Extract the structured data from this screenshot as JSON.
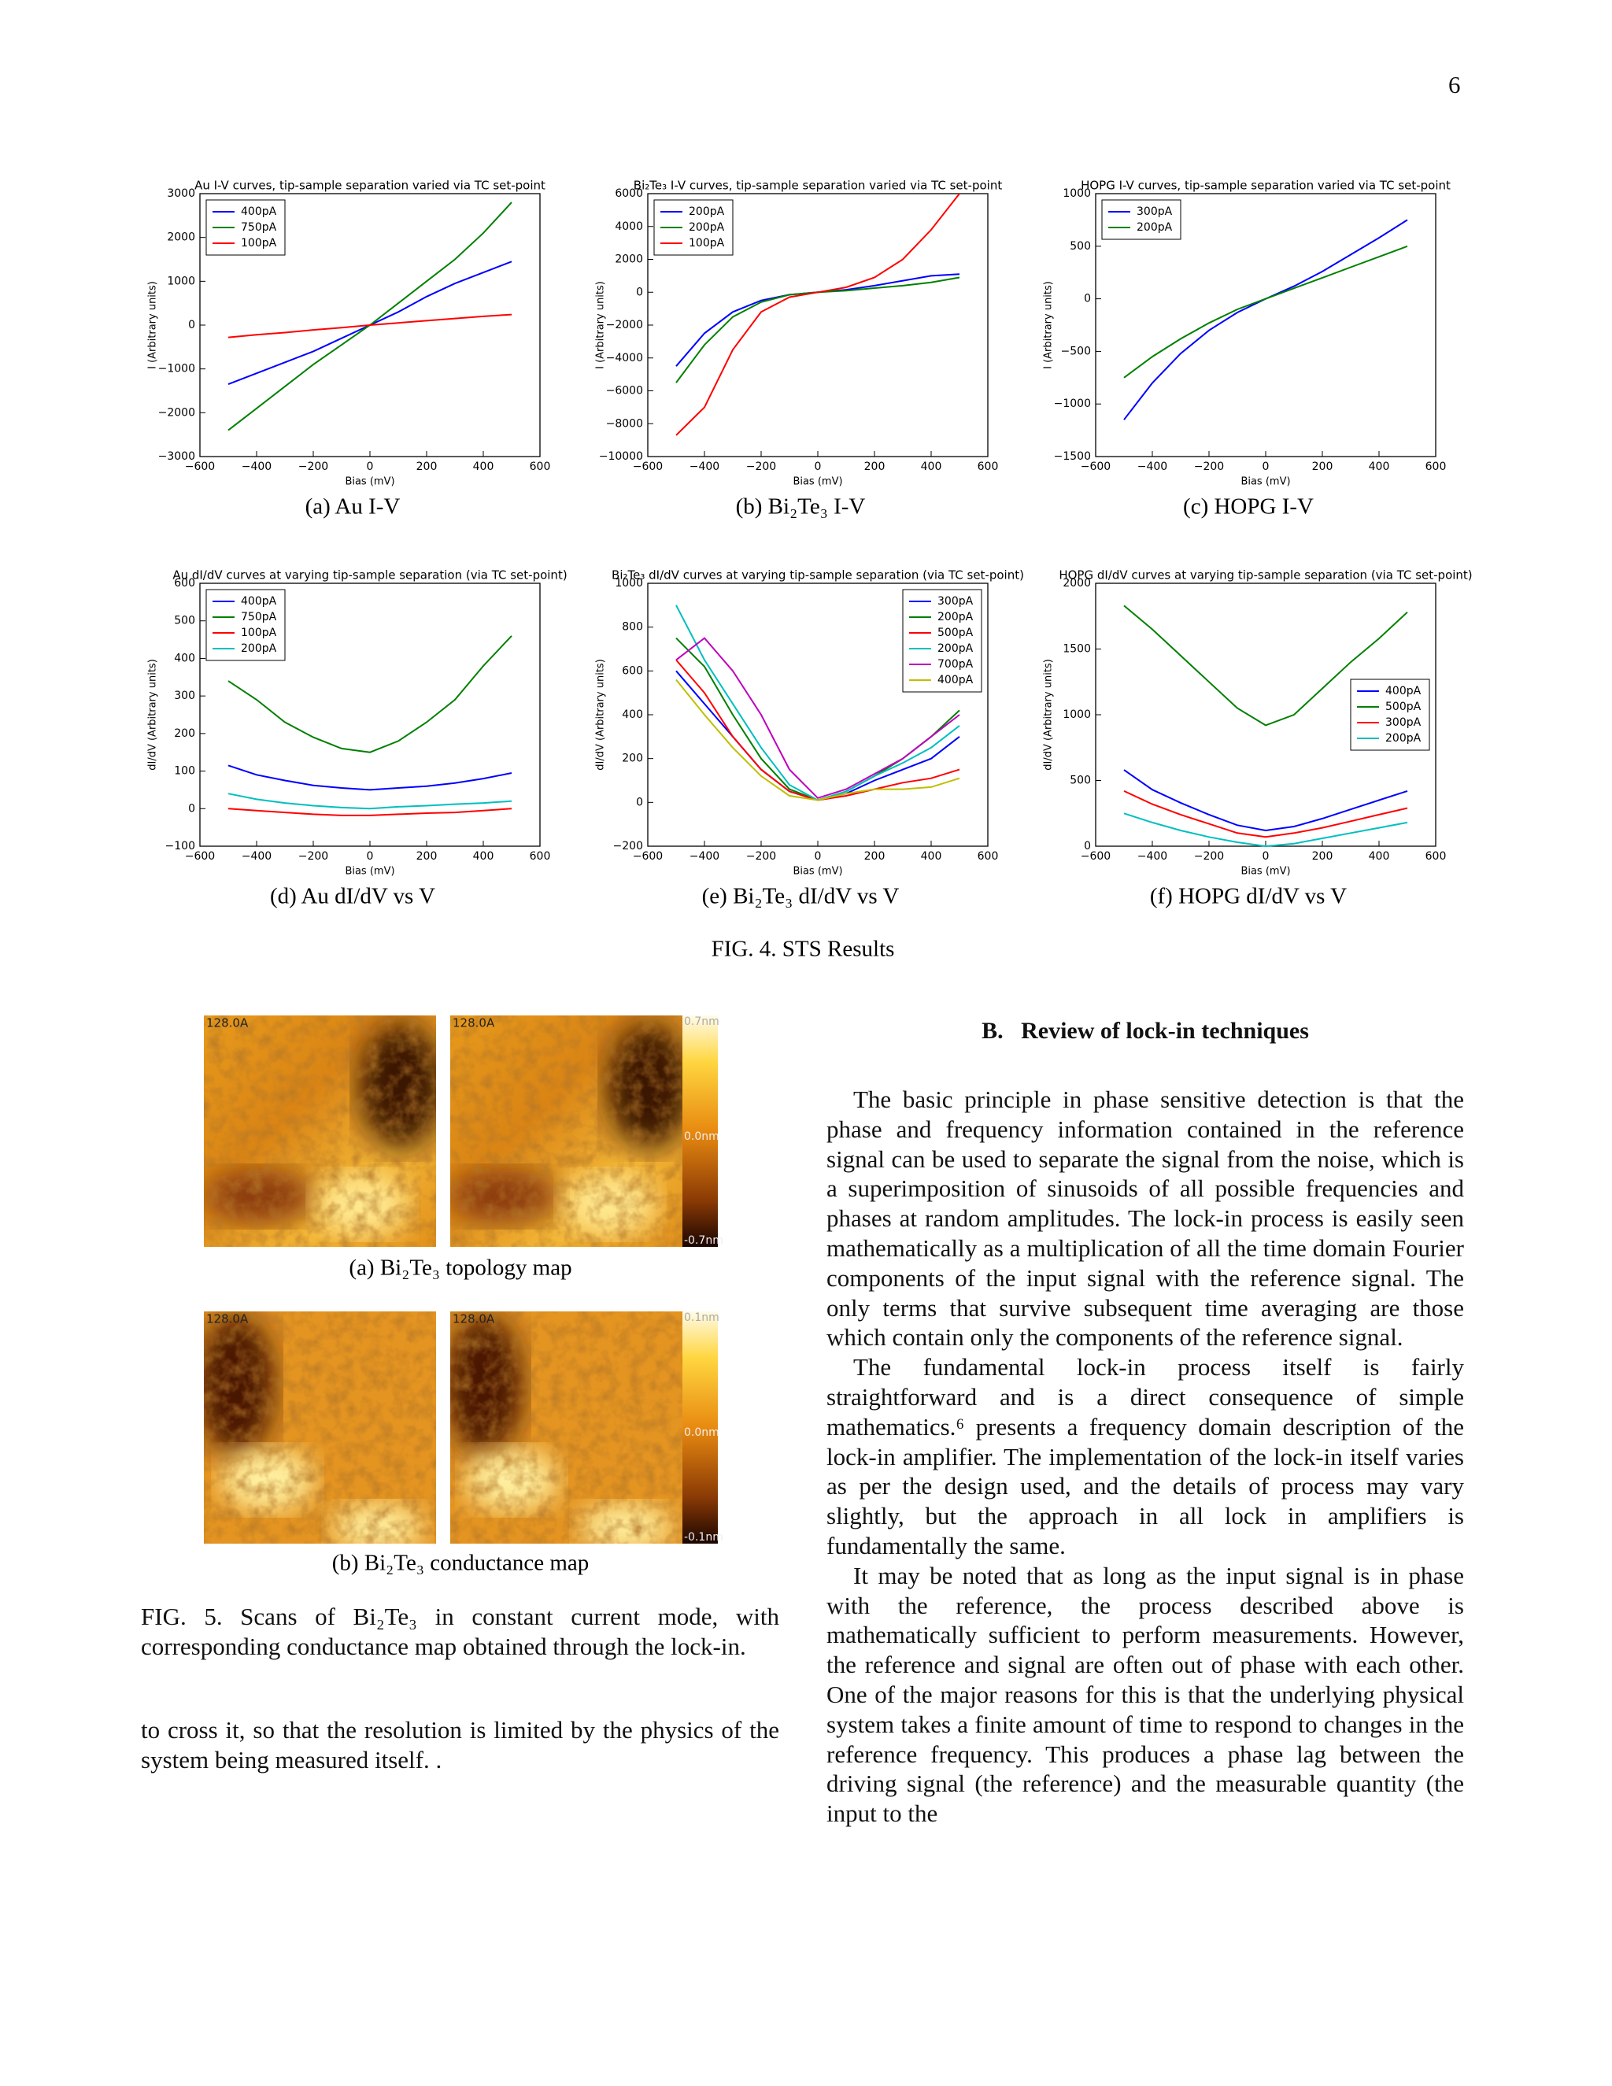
{
  "page_number": "6",
  "fig4_caption": "FIG. 4. STS Results",
  "fig5": {
    "image_labels": [
      "128.0A",
      "128.0A",
      "128.0A",
      "128.0A"
    ],
    "colorbar_labels_a": [
      "0.7nm",
      "0.0nm",
      "-0.7nm"
    ],
    "colorbar_labels_b": [
      "0.1nm",
      "0.0nm",
      "-0.1nm"
    ],
    "caption_a": "(a) Bi₂Te₃ topology map",
    "caption_b": "(b) Bi₂Te₃ conductance map",
    "caption": "FIG. 5. Scans of Bi₂Te₃ in constant current mode, with corresponding conductance map obtained through the lock-in."
  },
  "left_text": "to cross it, so that the resolution is limited by the physics of the system being measured itself. .",
  "section_heading": "B.   Review of lock-in techniques",
  "paragraphs": [
    "The basic principle in phase sensitive detection is that the phase and frequency information contained in the reference signal can be used to separate the signal from the noise, which is a superimposition of sinusoids of all possible frequencies and phases at random amplitudes. The lock-in process is easily seen mathematically as a multiplication of all the time domain Fourier components of the input signal with the reference signal. The only terms that survive subsequent time averaging are those which contain only the components of the reference signal.",
    "The fundamental lock-in process itself is fairly straightforward and is a direct consequence of simple mathematics.⁶ presents a frequency domain description of the lock-in amplifier. The implementation of the lock-in itself varies as per the design used, and the details of process may vary slightly, but the approach in all lock in amplifiers is fundamentally the same.",
    "It may be noted that as long as the input signal is in phase with the reference, the process described above is mathematically sufficient to perform measurements. However, the reference and signal are often out of phase with each other. One of the major reasons for this is that the underlying physical system takes a finite amount of time to respond to changes in the reference frequency. This produces a phase lag between the driving signal (the reference) and the measurable quantity (the input to the"
  ],
  "chart_data": [
    {
      "type": "line",
      "title": "Au I-V curves, tip-sample separation  varied via TC set-point",
      "caption": "(a) Au I-V",
      "xlabel": "Bias (mV)",
      "ylabel": "I (Arbitrary units)",
      "legend": "upper left",
      "x": [
        -500,
        -400,
        -300,
        -200,
        -100,
        0,
        100,
        200,
        300,
        400,
        500
      ],
      "xlim": [
        -600,
        600
      ],
      "xticks": [
        {
          "value": -600,
          "label": "−600"
        },
        {
          "value": -400,
          "label": "−400"
        },
        {
          "value": -200,
          "label": "−200"
        },
        0,
        200,
        400,
        600
      ],
      "ylim": [
        -3000,
        3000
      ],
      "yticks": [
        {
          "value": -3000,
          "label": "−3000"
        },
        {
          "value": -2000,
          "label": "−2000"
        },
        {
          "value": -1000,
          "label": "−1000"
        },
        0,
        1000,
        2000,
        3000
      ],
      "series": [
        {
          "name": "400pA",
          "color": "#0000ff",
          "values": [
            -1350,
            -1100,
            -850,
            -600,
            -300,
            0,
            300,
            650,
            950,
            1200,
            1450
          ]
        },
        {
          "name": "750pA",
          "color": "#008000",
          "values": [
            -2400,
            -1900,
            -1400,
            -900,
            -450,
            0,
            500,
            1000,
            1500,
            2100,
            2800
          ]
        },
        {
          "name": "100pA",
          "color": "#ff0000",
          "values": [
            -280,
            -220,
            -170,
            -110,
            -60,
            0,
            50,
            100,
            150,
            200,
            240
          ]
        }
      ]
    },
    {
      "type": "line",
      "title": "Bi₂Te₃ I-V curves, tip-sample separation  varied via TC set-point",
      "caption": "(b) Bi₂Te₃ I-V",
      "xlabel": "Bias (mV)",
      "ylabel": "I (Arbitrary units)",
      "legend": "upper left",
      "x": [
        -500,
        -400,
        -300,
        -200,
        -100,
        0,
        100,
        200,
        300,
        400,
        500
      ],
      "xlim": [
        -600,
        600
      ],
      "xticks": [
        {
          "value": -600,
          "label": "−600"
        },
        {
          "value": -400,
          "label": "−400"
        },
        {
          "value": -200,
          "label": "−200"
        },
        0,
        200,
        400,
        600
      ],
      "ylim": [
        -10000,
        6000
      ],
      "yticks": [
        {
          "value": -10000,
          "label": "−10000"
        },
        {
          "value": -8000,
          "label": "−8000"
        },
        {
          "value": -6000,
          "label": "−6000"
        },
        {
          "value": -4000,
          "label": "−4000"
        },
        {
          "value": -2000,
          "label": "−2000"
        },
        0,
        2000,
        4000,
        6000
      ],
      "series": [
        {
          "name": "200pA",
          "color": "#0000ff",
          "values": [
            -4500,
            -2500,
            -1200,
            -500,
            -150,
            0,
            150,
            400,
            700,
            1000,
            1100
          ]
        },
        {
          "name": "200pA",
          "color": "#008000",
          "values": [
            -5500,
            -3200,
            -1500,
            -600,
            -150,
            0,
            100,
            250,
            400,
            600,
            900
          ]
        },
        {
          "name": "100pA",
          "color": "#ff0000",
          "values": [
            -8700,
            -7000,
            -3500,
            -1200,
            -300,
            0,
            300,
            900,
            2000,
            3800,
            6000
          ]
        }
      ]
    },
    {
      "type": "line",
      "title": "HOPG I-V curves, tip-sample separation  varied via TC set-point",
      "caption": "(c) HOPG I-V",
      "xlabel": "Bias (mV)",
      "ylabel": "I (Arbitrary units)",
      "legend": "upper left",
      "x": [
        -500,
        -400,
        -300,
        -200,
        -100,
        0,
        100,
        200,
        300,
        400,
        500
      ],
      "xlim": [
        -600,
        600
      ],
      "xticks": [
        {
          "value": -600,
          "label": "−600"
        },
        {
          "value": -400,
          "label": "−400"
        },
        {
          "value": -200,
          "label": "−200"
        },
        0,
        200,
        400,
        600
      ],
      "ylim": [
        -1500,
        1000
      ],
      "yticks": [
        {
          "value": -1500,
          "label": "−1500"
        },
        {
          "value": -1000,
          "label": "−1000"
        },
        {
          "value": -500,
          "label": "−500"
        },
        0,
        500,
        1000
      ],
      "series": [
        {
          "name": "300pA",
          "color": "#0000ff",
          "values": [
            -1150,
            -800,
            -520,
            -300,
            -130,
            0,
            120,
            260,
            420,
            580,
            750
          ]
        },
        {
          "name": "200pA",
          "color": "#008000",
          "values": [
            -750,
            -550,
            -380,
            -230,
            -100,
            0,
            100,
            200,
            300,
            400,
            500
          ]
        }
      ]
    },
    {
      "type": "line",
      "title": "Au dI/dV curves at varying tip-sample separation (via TC set-point)",
      "caption": "(d) Au dI/dV vs V",
      "xlabel": "Bias (mV)",
      "ylabel": "dI/dV (Arbitrary units)",
      "legend": "upper left",
      "x": [
        -500,
        -400,
        -300,
        -200,
        -100,
        0,
        100,
        200,
        300,
        400,
        500
      ],
      "xlim": [
        -600,
        600
      ],
      "xticks": [
        {
          "value": -600,
          "label": "−600"
        },
        {
          "value": -400,
          "label": "−400"
        },
        {
          "value": -200,
          "label": "−200"
        },
        0,
        200,
        400,
        600
      ],
      "ylim": [
        -100,
        600
      ],
      "yticks": [
        {
          "value": -100,
          "label": "−100"
        },
        0,
        100,
        200,
        300,
        400,
        500,
        600
      ],
      "series": [
        {
          "name": "400pA",
          "color": "#0000ff",
          "values": [
            115,
            90,
            75,
            62,
            55,
            50,
            55,
            60,
            68,
            80,
            95
          ]
        },
        {
          "name": "750pA",
          "color": "#008000",
          "values": [
            340,
            290,
            230,
            190,
            160,
            150,
            180,
            230,
            290,
            380,
            460
          ]
        },
        {
          "name": "100pA",
          "color": "#ff0000",
          "values": [
            0,
            -5,
            -10,
            -15,
            -18,
            -18,
            -15,
            -12,
            -10,
            -5,
            0
          ]
        },
        {
          "name": "200pA",
          "color": "#00bfbf",
          "values": [
            40,
            25,
            15,
            8,
            3,
            0,
            5,
            8,
            12,
            15,
            20
          ]
        }
      ]
    },
    {
      "type": "line",
      "title": "Bi₂Te₃ dI/dV curves at varying tip-sample separation (via TC set-point)",
      "caption": "(e) Bi₂Te₃ dI/dV vs V",
      "xlabel": "Bias (mV)",
      "ylabel": "dI/dV (Arbitrary units)",
      "legend": "upper right",
      "x": [
        -500,
        -400,
        -300,
        -200,
        -100,
        0,
        100,
        200,
        300,
        400,
        500
      ],
      "xlim": [
        -600,
        600
      ],
      "xticks": [
        {
          "value": -600,
          "label": "−600"
        },
        {
          "value": -400,
          "label": "−400"
        },
        {
          "value": -200,
          "label": "−200"
        },
        0,
        200,
        400,
        600
      ],
      "ylim": [
        -200,
        1000
      ],
      "yticks": [
        {
          "value": -200,
          "label": "−200"
        },
        0,
        200,
        400,
        600,
        800,
        1000
      ],
      "series": [
        {
          "name": "300pA",
          "color": "#0000ff",
          "values": [
            600,
            450,
            300,
            150,
            50,
            10,
            40,
            100,
            150,
            200,
            300
          ]
        },
        {
          "name": "200pA",
          "color": "#008000",
          "values": [
            750,
            620,
            400,
            200,
            60,
            10,
            50,
            120,
            200,
            300,
            420
          ]
        },
        {
          "name": "500pA",
          "color": "#ff0000",
          "values": [
            650,
            500,
            300,
            150,
            50,
            10,
            30,
            60,
            90,
            110,
            150
          ]
        },
        {
          "name": "200pA",
          "color": "#00bfbf",
          "values": [
            900,
            650,
            450,
            250,
            80,
            10,
            50,
            120,
            180,
            250,
            350
          ]
        },
        {
          "name": "700pA",
          "color": "#bf00bf",
          "values": [
            650,
            750,
            600,
            400,
            150,
            20,
            60,
            130,
            200,
            300,
            400
          ]
        },
        {
          "name": "400pA",
          "color": "#bfbf00",
          "values": [
            560,
            400,
            250,
            120,
            30,
            10,
            40,
            60,
            60,
            70,
            110
          ]
        }
      ]
    },
    {
      "type": "line",
      "title": "HOPG dI/dV curves at varying tip-sample separation (via TC set-point)",
      "caption": "(f) HOPG dI/dV vs V",
      "xlabel": "Bias (mV)",
      "ylabel": "dI/dV (Arbitrary units)",
      "legend": "center right",
      "x": [
        -500,
        -400,
        -300,
        -200,
        -100,
        0,
        100,
        200,
        300,
        400,
        500
      ],
      "xlim": [
        -600,
        600
      ],
      "xticks": [
        {
          "value": -600,
          "label": "−600"
        },
        {
          "value": -400,
          "label": "−400"
        },
        {
          "value": -200,
          "label": "−200"
        },
        0,
        200,
        400,
        600
      ],
      "ylim": [
        0,
        2000
      ],
      "yticks": [
        0,
        500,
        1000,
        1500,
        2000
      ],
      "series": [
        {
          "name": "400pA",
          "color": "#0000ff",
          "values": [
            580,
            430,
            330,
            240,
            160,
            120,
            150,
            210,
            280,
            350,
            420
          ]
        },
        {
          "name": "500pA",
          "color": "#008000",
          "values": [
            1830,
            1650,
            1450,
            1250,
            1050,
            920,
            1000,
            1200,
            1400,
            1580,
            1780
          ]
        },
        {
          "name": "300pA",
          "color": "#ff0000",
          "values": [
            420,
            320,
            240,
            170,
            100,
            70,
            100,
            140,
            190,
            240,
            290
          ]
        },
        {
          "name": "200pA",
          "color": "#00bfbf",
          "values": [
            250,
            180,
            120,
            70,
            30,
            0,
            20,
            60,
            100,
            140,
            180
          ]
        }
      ]
    }
  ]
}
